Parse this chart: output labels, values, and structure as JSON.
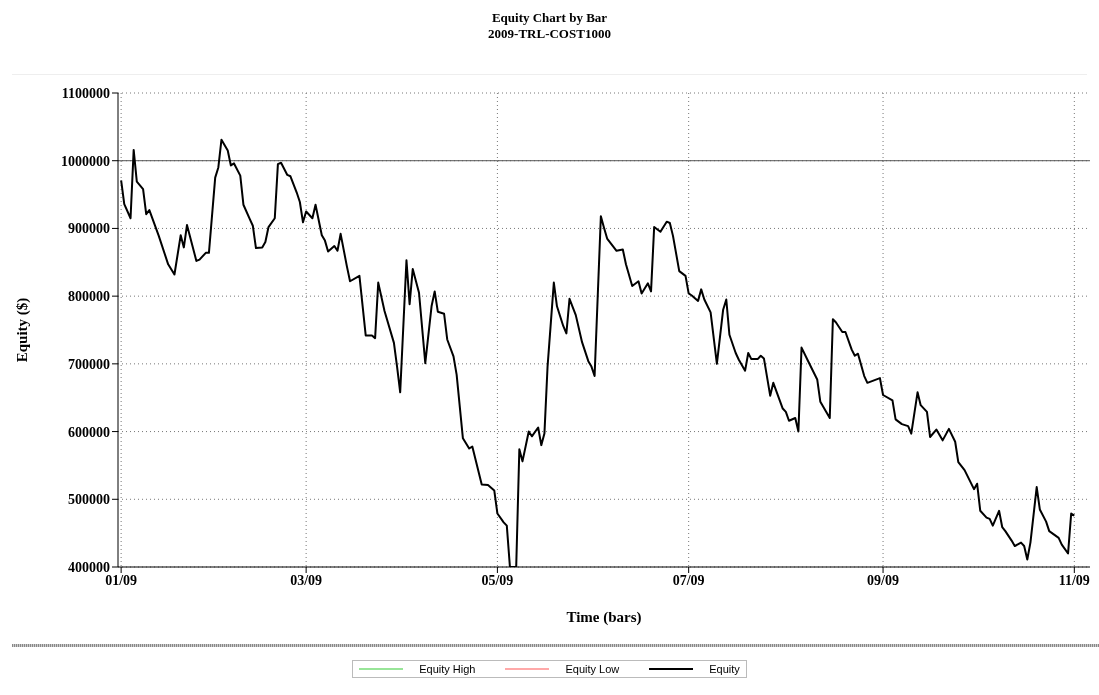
{
  "chart_data": {
    "type": "line",
    "title": "Equity Chart by Bar",
    "subtitle": "2009-TRL-COST1000",
    "xlabel": "Time (bars)",
    "ylabel": "Equity ($)",
    "xlim": [
      "2008-12-31",
      "2009-11-06"
    ],
    "xticks": [
      {
        "value": "2009-01-01",
        "label": "01/09"
      },
      {
        "value": "2009-03-01",
        "label": "03/09"
      },
      {
        "value": "2009-05-01",
        "label": "05/09"
      },
      {
        "value": "2009-07-01",
        "label": "07/09"
      },
      {
        "value": "2009-09-01",
        "label": "09/09"
      },
      {
        "value": "2009-11-01",
        "label": "11/09"
      }
    ],
    "ylim": [
      400000,
      1100000
    ],
    "yticks": [
      400000,
      500000,
      600000,
      700000,
      800000,
      900000,
      1000000,
      1100000
    ],
    "grid": true,
    "legend": "bottom",
    "marker": "none",
    "line_style": "solid",
    "ref_lines": [
      {
        "axis": "y",
        "value": 1000000,
        "color": "#555555",
        "line_style": "solid"
      }
    ],
    "series": [
      {
        "name": "Equity High",
        "color": "#33cc33"
      },
      {
        "name": "Equity Low",
        "color": "#ff5555"
      },
      {
        "name": "Equity",
        "color": "#000000",
        "x": [
          "2009-01-01",
          "2009-01-02",
          "2009-01-04",
          "2009-01-05",
          "2009-01-06",
          "2009-01-08",
          "2009-01-09",
          "2009-01-10",
          "2009-01-13",
          "2009-01-16",
          "2009-01-18",
          "2009-01-20",
          "2009-01-21",
          "2009-01-22",
          "2009-01-25",
          "2009-01-26",
          "2009-01-28",
          "2009-01-29",
          "2009-01-31",
          "2009-02-01",
          "2009-02-02",
          "2009-02-04",
          "2009-02-05",
          "2009-02-06",
          "2009-02-08",
          "2009-02-09",
          "2009-02-11",
          "2009-02-12",
          "2009-02-13",
          "2009-02-15",
          "2009-02-16",
          "2009-02-17",
          "2009-02-19",
          "2009-02-20",
          "2009-02-21",
          "2009-02-23",
          "2009-02-24",
          "2009-02-26",
          "2009-02-27",
          "2009-02-28",
          "2009-03-01",
          "2009-03-03",
          "2009-03-04",
          "2009-03-06",
          "2009-03-07",
          "2009-03-08",
          "2009-03-10",
          "2009-03-11",
          "2009-03-12",
          "2009-03-14",
          "2009-03-15",
          "2009-03-18",
          "2009-03-20",
          "2009-03-22",
          "2009-03-23",
          "2009-03-24",
          "2009-03-26",
          "2009-03-29",
          "2009-03-30",
          "2009-03-31",
          "2009-04-02",
          "2009-04-03",
          "2009-04-04",
          "2009-04-06",
          "2009-04-08",
          "2009-04-10",
          "2009-04-11",
          "2009-04-12",
          "2009-04-14",
          "2009-04-15",
          "2009-04-17",
          "2009-04-18",
          "2009-04-20",
          "2009-04-22",
          "2009-04-23",
          "2009-04-26",
          "2009-04-28",
          "2009-04-30",
          "2009-05-01",
          "2009-05-03",
          "2009-05-04",
          "2009-05-05",
          "2009-05-07",
          "2009-05-08",
          "2009-05-09",
          "2009-05-11",
          "2009-05-12",
          "2009-05-14",
          "2009-05-15",
          "2009-05-16",
          "2009-05-17",
          "2009-05-19",
          "2009-05-20",
          "2009-05-22",
          "2009-05-23",
          "2009-05-24",
          "2009-05-26",
          "2009-05-28",
          "2009-05-30",
          "2009-05-31",
          "2009-06-01",
          "2009-06-03",
          "2009-06-04",
          "2009-06-05",
          "2009-06-08",
          "2009-06-10",
          "2009-06-11",
          "2009-06-13",
          "2009-06-15",
          "2009-06-16",
          "2009-06-18",
          "2009-06-19",
          "2009-06-20",
          "2009-06-22",
          "2009-06-24",
          "2009-06-25",
          "2009-06-26",
          "2009-06-28",
          "2009-06-30",
          "2009-07-01",
          "2009-07-02",
          "2009-07-04",
          "2009-07-05",
          "2009-07-06",
          "2009-07-08",
          "2009-07-10",
          "2009-07-12",
          "2009-07-13",
          "2009-07-14",
          "2009-07-16",
          "2009-07-17",
          "2009-07-19",
          "2009-07-20",
          "2009-07-21",
          "2009-07-23",
          "2009-07-24",
          "2009-07-25",
          "2009-07-27",
          "2009-07-28",
          "2009-07-31",
          "2009-08-01",
          "2009-08-02",
          "2009-08-04",
          "2009-08-05",
          "2009-08-06",
          "2009-08-08",
          "2009-08-11",
          "2009-08-12",
          "2009-08-15",
          "2009-08-16",
          "2009-08-17",
          "2009-08-19",
          "2009-08-20",
          "2009-08-22",
          "2009-08-23",
          "2009-08-24",
          "2009-08-26",
          "2009-08-27",
          "2009-08-31",
          "2009-09-01",
          "2009-09-04",
          "2009-09-05",
          "2009-09-07",
          "2009-09-09",
          "2009-09-10",
          "2009-09-12",
          "2009-09-13",
          "2009-09-15",
          "2009-09-16",
          "2009-09-18",
          "2009-09-20",
          "2009-09-22",
          "2009-09-24",
          "2009-09-25",
          "2009-09-27",
          "2009-09-30",
          "2009-10-01",
          "2009-10-02",
          "2009-10-04",
          "2009-10-05",
          "2009-10-06",
          "2009-10-08",
          "2009-10-09",
          "2009-10-10",
          "2009-10-12",
          "2009-10-13",
          "2009-10-15",
          "2009-10-16",
          "2009-10-17",
          "2009-10-18",
          "2009-10-20",
          "2009-10-21",
          "2009-10-23",
          "2009-10-24",
          "2009-10-27",
          "2009-10-28",
          "2009-10-30",
          "2009-10-31",
          "2009-11-01"
        ],
        "values": [
          971000,
          936000,
          915000,
          1016000,
          969000,
          958000,
          921000,
          927000,
          889000,
          847000,
          832000,
          890000,
          872000,
          905000,
          852000,
          854000,
          864000,
          864000,
          975000,
          990000,
          1031000,
          1015000,
          993000,
          996000,
          978000,
          935000,
          914000,
          904000,
          871000,
          872000,
          880000,
          902000,
          915000,
          995000,
          997000,
          979000,
          977000,
          953000,
          939000,
          909000,
          925000,
          915000,
          935000,
          890000,
          882000,
          866000,
          874000,
          867000,
          892000,
          844000,
          822000,
          830000,
          742000,
          742000,
          738000,
          820000,
          778000,
          731000,
          696000,
          658000,
          853000,
          788000,
          840000,
          805000,
          701000,
          785000,
          807000,
          777000,
          774000,
          736000,
          711000,
          684000,
          590000,
          575000,
          578000,
          522000,
          521000,
          513000,
          479000,
          466000,
          461000,
          400000,
          400000,
          574000,
          556000,
          600000,
          593000,
          606000,
          580000,
          597000,
          696000,
          820000,
          785000,
          756000,
          745000,
          796000,
          772000,
          732000,
          704000,
          696000,
          682000,
          918000,
          901000,
          885000,
          867000,
          869000,
          847000,
          815000,
          822000,
          804000,
          819000,
          807000,
          902000,
          895000,
          910000,
          908000,
          889000,
          837000,
          830000,
          804000,
          801000,
          793000,
          810000,
          795000,
          776000,
          700000,
          780000,
          795000,
          743000,
          716000,
          706000,
          690000,
          716000,
          707000,
          707000,
          712000,
          708000,
          653000,
          672000,
          634000,
          629000,
          616000,
          620000,
          600000,
          724000,
          705000,
          677000,
          644000,
          620000,
          766000,
          761000,
          747000,
          747000,
          721000,
          712000,
          715000,
          682000,
          672000,
          679000,
          654000,
          646000,
          618000,
          611000,
          608000,
          597000,
          658000,
          639000,
          629000,
          592000,
          603000,
          587000,
          604000,
          585000,
          555000,
          543000,
          515000,
          523000,
          483000,
          473000,
          471000,
          461000,
          483000,
          459000,
          453000,
          439000,
          431000,
          436000,
          431000,
          411000,
          436000,
          518000,
          485000,
          467000,
          453000,
          443000,
          433000,
          420000,
          479000,
          476000
        ]
      }
    ]
  }
}
